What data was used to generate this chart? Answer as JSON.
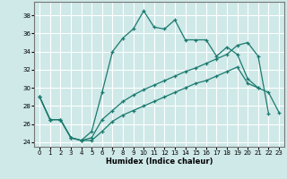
{
  "xlabel": "Humidex (Indice chaleur)",
  "bg_color": "#cfe8e8",
  "grid_color": "#ffffff",
  "line_color": "#1a7a6e",
  "xlim": [
    -0.5,
    23.5
  ],
  "ylim": [
    23.5,
    39.5
  ],
  "xticks": [
    0,
    1,
    2,
    3,
    4,
    5,
    6,
    7,
    8,
    9,
    10,
    11,
    12,
    13,
    14,
    15,
    16,
    17,
    18,
    19,
    20,
    21,
    22,
    23
  ],
  "yticks": [
    24,
    26,
    28,
    30,
    32,
    34,
    36,
    38
  ],
  "line1_x": [
    0,
    1,
    2,
    3,
    4,
    5,
    6,
    7,
    8,
    9,
    10,
    11,
    12,
    13,
    14,
    15,
    16,
    17,
    18,
    19,
    20,
    21
  ],
  "line1_y": [
    29.0,
    26.5,
    26.5,
    24.5,
    24.2,
    25.2,
    29.5,
    34.0,
    35.5,
    36.5,
    38.5,
    36.7,
    36.5,
    37.5,
    35.3,
    35.3,
    35.3,
    33.5,
    34.5,
    33.7,
    31.0,
    30.0
  ],
  "line2_x": [
    0,
    1,
    2,
    3,
    4,
    5,
    6,
    7,
    8,
    9,
    10,
    11,
    12,
    13,
    14,
    15,
    16,
    17,
    18,
    19,
    20,
    21,
    22
  ],
  "line2_y": [
    29.0,
    26.5,
    26.5,
    24.5,
    24.2,
    24.5,
    26.5,
    27.5,
    28.5,
    29.2,
    29.8,
    30.3,
    30.8,
    31.3,
    31.8,
    32.2,
    32.7,
    33.2,
    33.7,
    34.7,
    35.0,
    33.5,
    27.2
  ],
  "line3_x": [
    0,
    1,
    2,
    3,
    4,
    5,
    6,
    7,
    8,
    9,
    10,
    11,
    12,
    13,
    14,
    15,
    16,
    17,
    18,
    19,
    20,
    21,
    22,
    23
  ],
  "line3_y": [
    29.0,
    26.5,
    26.5,
    24.5,
    24.2,
    24.2,
    25.2,
    26.3,
    27.0,
    27.5,
    28.0,
    28.5,
    29.0,
    29.5,
    30.0,
    30.5,
    30.8,
    31.3,
    31.8,
    32.3,
    30.5,
    30.0,
    29.5,
    27.3
  ]
}
